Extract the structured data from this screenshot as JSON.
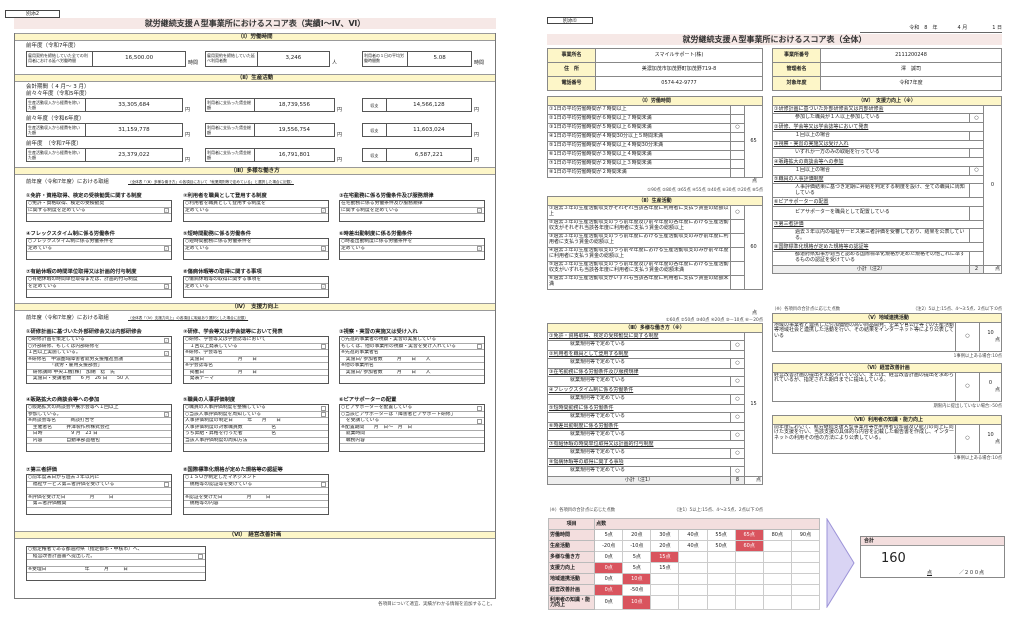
{
  "left": {
    "tag": "別添2",
    "title": "就労継続支援Ａ型事業所におけるスコア表（実績Ⅰ～Ⅳ、Ⅵ）",
    "s1": {
      "header": "（Ⅰ）労働時間",
      "year": "前年度（令和7年度）",
      "fields": [
        {
          "label": "雇用契約を締結していた全ての利用者における延べ労働時間",
          "value": "16,500.00",
          "unit": "時間"
        },
        {
          "label": "雇用契約を締結していた延べ利用者数",
          "value": "3,246",
          "unit": "人"
        },
        {
          "label": "利用者の１日の平均労働時間数",
          "value": "5.08",
          "unit": "時間"
        }
      ]
    },
    "s2": {
      "header": "（Ⅱ）生産活動",
      "period": "会計期間（ 4 月～ 3 月）",
      "labels": [
        "生産活動収入から経費を除いた額",
        "利用者に支払った賃金総額",
        "収支"
      ],
      "unit": "円",
      "years": [
        {
          "label": "前々々年度（令和5年度）",
          "values": [
            "33,305,684",
            "18,739,556",
            "14,566,128"
          ]
        },
        {
          "label": "前々年度（令和6年度）",
          "values": [
            "31,159,778",
            "19,556,754",
            "11,603,024"
          ]
        },
        {
          "label": "前年度　（令和7年度）",
          "values": [
            "23,379,022",
            "16,791,801",
            "6,587,221"
          ]
        }
      ]
    },
    "s3": {
      "header": "（Ⅲ）多様な働き方",
      "intro": "前年度（令和7年度）における取組",
      "note": "（全体表「（Ⅲ）多様な働き方」の各項目において「就業規則等で定めている」と選択した場合に記載）",
      "items": [
        {
          "title": "①免許・資格取得、検定の受検勧奨に関する制度",
          "lines": [
            {
              "t": "○免許・資格取得、検定の受検勧奨"
            },
            {
              "t": "に関する制度を定めている",
              "c": true
            },
            {
              "t": ""
            }
          ]
        },
        {
          "title": "②利用者を職員として登用する制度",
          "lines": [
            {
              "t": "○利用者を職員として登用する制度を"
            },
            {
              "t": "定めている",
              "c": true
            },
            {
              "t": ""
            }
          ]
        },
        {
          "title": "③在宅勤務に係る労働条件及び服務規律",
          "lines": [
            {
              "t": "在宅勤務に係る労働条件及び服務規律"
            },
            {
              "t": "に関する制度を定めている",
              "c": true
            },
            {
              "t": ""
            }
          ]
        },
        {
          "title": "④フレックスタイム制に係る労働条件",
          "lines": [
            {
              "t": "○フレックスタイム制に係る労働条件を"
            },
            {
              "t": "定めている",
              "c": true
            },
            {
              "t": ""
            }
          ]
        },
        {
          "title": "⑤短時間勤務に係る労働条件",
          "lines": [
            {
              "t": "○短時間勤務に係る労働条件を"
            },
            {
              "t": "定めている",
              "c": true
            },
            {
              "t": ""
            }
          ]
        },
        {
          "title": "⑥時差出勤制度に係る労働条件",
          "lines": [
            {
              "t": "○時差出勤制度に係る労働条件を"
            },
            {
              "t": "定めている",
              "c": true
            },
            {
              "t": ""
            }
          ]
        },
        {
          "title": "⑦有給休暇の時間単位取得又は計画的付与制度",
          "lines": [
            {
              "t": "○有給休暇の時間単位取得または、計画的付与制度"
            },
            {
              "t": "を定めている",
              "c": true
            },
            {
              "t": ""
            }
          ]
        },
        {
          "title": "⑧傷病休暇等の取得に関する事項",
          "lines": [
            {
              "t": "○傷病休暇等の取得に関する事項を"
            },
            {
              "t": "定めている",
              "c": true
            },
            {
              "t": ""
            }
          ]
        }
      ]
    },
    "s4": {
      "header": "（Ⅳ）　支援力向上",
      "intro": "前年度（令和7年度）における取組",
      "note": "（全体表「（Ⅳ）支援力向上」の各項目に取組あり選択とした場合に記載）",
      "items": [
        {
          "title": "①研修計画に基づいた外部研修会又は内部研修会",
          "lines": [
            {
              "t": "○研修計画を策定している",
              "c": true
            },
            {
              "t": "○外部研修、もしくは内部研修を"
            },
            {
              "t": "１回以上実施している。",
              "c": true
            },
            {
              "t": "※研修名　中濃圏域障害者就労支援推進会議"
            },
            {
              "t": "　　　　　「就労・雇用支援部会」"
            },
            {
              "t": "　研修講師 中央工機(株)　加納　稔　氏"
            },
            {
              "t": "　実施日・受講者数　　6 月　26 日　　50 人"
            }
          ]
        },
        {
          "title": "②研修、学会等又は学会誌等において発表",
          "lines": [
            {
              "t": "○研修、学会等又は学会誌等において"
            },
            {
              "t": "　１回以上発表している",
              "c": false
            },
            {
              "t": "※研修、学会等名"
            },
            {
              "t": "　実施日　　　　　　　月　　日"
            },
            {
              "t": "※学会誌等名"
            },
            {
              "t": "　掲載日　　　　　　　月　　日"
            },
            {
              "t": "　発表テーマ"
            }
          ]
        },
        {
          "title": "③視察・実習の実施又は受け入れ",
          "lines": [
            {
              "t": "○先進的事業者の視察・実習の実施している"
            },
            {
              "t": "もしくは、他の事業所の視察・実習を受け入れている",
              "c": false
            },
            {
              "t": "※先進的事業者名"
            },
            {
              "t": "　実施日/ 参加者数　　　月　　日　　人"
            },
            {
              "t": "※他の事業所名"
            },
            {
              "t": "　実施日/ 参加者数　　　月　　日　　人"
            },
            {
              "t": ""
            }
          ]
        },
        {
          "title": "④販路拡大の商談会等への参加",
          "lines": [
            {
              "t": "○販路拡大の商談会や展示会等へ１回以上"
            },
            {
              "t": "参加している。",
              "c": true
            },
            {
              "t": "※商談会等名　　　商談打合せ"
            },
            {
              "t": "　主催者名　　　井澤製作所株式会社"
            },
            {
              "t": "　日時　　　　　　9 月　23 日"
            },
            {
              "t": "　内容　　　　　自動車部品梱包"
            },
            {
              "t": ""
            }
          ]
        },
        {
          "title": "⑤職員の人事評価制度",
          "lines": [
            {
              "t": "○職員の人事評価制度を整備している",
              "c": false
            },
            {
              "t": "○当該人事評価制度を周知している",
              "c": false
            },
            {
              "t": "人事評価制度の制定日　　　年　　月　　日"
            },
            {
              "t": "人事評価制度の対象職員数　　　　　　名"
            },
            {
              "t": "うち昇給・昇格を行った者　　　　　　名"
            },
            {
              "t": "当該人事評価制度の周知方法"
            },
            {
              "t": ""
            }
          ]
        },
        {
          "title": "⑥ピアサポーターの配置",
          "lines": [
            {
              "t": "○ピアサポーターを配置している",
              "c": false
            },
            {
              "t": "○当該ピアサポーターは「障害者ピアサポート研修」"
            },
            {
              "t": "　を受講している",
              "c": false
            },
            {
              "t": "※配置期間　　月　日～　月　日"
            },
            {
              "t": "　就業時間"
            },
            {
              "t": "　職務内容"
            },
            {
              "t": ""
            }
          ]
        },
        {
          "title": "⑦第三者評価",
          "lines": [
            {
              "t": "○前年度末日から過去３年以内に"
            },
            {
              "t": "　福祉サービス第三者評価を受けている",
              "c": false
            },
            {
              "t": ""
            },
            {
              "t": "※評価を受けた日　　　　　月　　　日"
            },
            {
              "t": "　第三者評価機関"
            },
            {
              "t": ""
            }
          ]
        },
        {
          "title": "⑧国際標準化規格が定めた規格等の認証等",
          "lines": [
            {
              "t": "○ＩＳＯが制定したマネジメント"
            },
            {
              "t": "　規格等の認証等を受けている",
              "c": false
            },
            {
              "t": ""
            },
            {
              "t": "※認証を受けた日　　　　　月　　　日"
            },
            {
              "t": "　規格等の内容"
            },
            {
              "t": ""
            }
          ]
        }
      ]
    },
    "s6": {
      "header": "（Ⅵ）　経営改善計画",
      "lines": [
        {
          "t": "○指定権者である都道府県（指定都市・中核市）へ、"
        },
        {
          "t": "　経営改善計画書へ提出した。",
          "c": false
        },
        {
          "t": ""
        },
        {
          "t": "※受理日　　　　　　　　年　　　月　　　日"
        },
        {
          "t": ""
        }
      ]
    },
    "footnote": "各項目について適宜、実績がわかる情報を追加すること。"
  },
  "right": {
    "tag": "別添①",
    "date": "令和　8　年　　　　4 月　　　　　1 日",
    "title": "就労継続支援Ａ型事業所におけるスコア表（全体）",
    "info_left": [
      {
        "k": "事業所名",
        "v": "スマイルサポート(株)"
      },
      {
        "k": "住　所",
        "v": "美濃加茂市加茂野町加茂野719-8"
      },
      {
        "k": "電話番号",
        "v": "0574-42-9777"
      }
    ],
    "info_right": [
      {
        "k": "事業所番号",
        "v": "2111200248"
      },
      {
        "k": "管理者名",
        "v": "澤　誠司"
      },
      {
        "k": "対象年度",
        "v": "令和7年度"
      }
    ],
    "s1": {
      "header": "（Ⅰ）労働時間",
      "score": "65",
      "unit": "点",
      "note": "①90点 ②80点 ③65点 ④55点 ⑤40点 ⑥30点 ⑦20点 ⑧5点",
      "rows": [
        {
          "t": "①1日の平均労働時間が７時間以上",
          "m": ""
        },
        {
          "t": "②1日の平均労働時間が６時間以上７時間未満",
          "m": ""
        },
        {
          "t": "③1日の平均労働時間が５時間以上６時間未満",
          "m": "○"
        },
        {
          "t": "④1日の平均労働時間が４時間30分以上５時間未満",
          "m": ""
        },
        {
          "t": "⑤1日の平均労働時間が４時間以上４時間30分未満",
          "m": ""
        },
        {
          "t": "⑥1日の平均労働時間が３時間以上４時間未満",
          "m": ""
        },
        {
          "t": "⑦1日の平均労働時間が２時間以上３時間未満",
          "m": ""
        },
        {
          "t": "⑧1日の平均労働時間が２時間未満",
          "m": ""
        }
      ]
    },
    "s2": {
      "header": "（Ⅱ）生産活動",
      "score": "60",
      "unit": "点",
      "note": "①60点 ②50点 ③40点 ④20点 ⑤－10点 ⑥－20点",
      "rows": [
        {
          "t": "①過去３年の生産活動収支がそれぞれ当該各年度に利用者に支払う賃金の総額以上",
          "m": "○"
        },
        {
          "t": "②過去３年の生産活動収支のうち前年度及び前々年度の各年度における生産活動収支がそれぞれ当該各年度に利用者に支払う賃金の総額以上",
          "m": ""
        },
        {
          "t": "③過去３年の生産活動収支のうち前年度における生産活動収支のみが前年度に利用者に支払う賃金の総額以上",
          "m": ""
        },
        {
          "t": "④過去３年の生産活動収支のうち前々年度における生産活動収支のみが前々年度に利用者に支払う賃金の総額以上",
          "m": ""
        },
        {
          "t": "⑤過去３年の生産活動収支のうち前年度及び前々年度の各年度における生産活動収支がいずれも当該各年度に利用者に支払う賃金の総額未満",
          "m": ""
        },
        {
          "t": "⑥過去３年の生産活動収支がいずれも当該各年度に利用者に支払う賃金の総額未満",
          "m": ""
        }
      ]
    },
    "s3": {
      "header": "（Ⅲ）多様な働き方（※）",
      "score": "15",
      "subtotal_label": "小計（注1）",
      "subtotal": "8",
      "unit": "点",
      "note_a": "（※）各項目の合計点に応じた点数",
      "note_b": "（注1）5以上:15点、4～3:5点、2点以下:0点",
      "items": [
        {
          "h": "①免許・資格取得、検定の受検勧奨に関する制度",
          "s": "就業規則等で定めている",
          "m": "○"
        },
        {
          "h": "②利用者を職員として登用する制度",
          "s": "就業規則等で定めている",
          "m": "○"
        },
        {
          "h": "③在宅勤務に係る労働条件及び服務規律",
          "s": "就業規則等で定めている",
          "m": "○"
        },
        {
          "h": "④フレックスタイム制に係る労働条件",
          "s": "就業規則等で定めている",
          "m": "○"
        },
        {
          "h": "⑤短時間勤務に係る労働条件",
          "s": "就業規則等で定めている",
          "m": "○"
        },
        {
          "h": "⑥時差出勤制度に係る労働条件",
          "s": "就業規則等で定めている",
          "m": "○"
        },
        {
          "h": "⑦有給休暇の時間単位取得又は計画的付与制度",
          "s": "就業規則等で定めている",
          "m": "○"
        },
        {
          "h": "⑧傷病休暇等の取得に関する事項",
          "s": "就業規則等で定めている",
          "m": "○"
        }
      ]
    },
    "s4": {
      "header": "（Ⅳ）　支援力向上（※）",
      "score": "0",
      "subtotal_label": "小計（注2）",
      "subtotal": "2",
      "unit": "点",
      "note_a": "（※）各項目の合計点に応じた点数",
      "note_b": "（注2）5以上:15点、4～3:5点、2点以下:0点",
      "items": [
        {
          "h": "①研修計画に基づいた外部研修会又は内部研修会",
          "s": "参加した職員が１人以上参加している",
          "m": "○"
        },
        {
          "h": "②研修、学会等又は学会誌等において発表",
          "s": "１回以上の場合",
          "m": ""
        },
        {
          "h": "③視察・実習の実施又は受け入れ",
          "s": "いずれか一方のみの取組を行っている",
          "m": ""
        },
        {
          "h": "④販路拡大の商談会等への参加",
          "s": "１回以上の場合",
          "m": "○"
        },
        {
          "h": "⑤職員の人事評価制度",
          "s": "人事評価結果に基づき定期に昇給を判定する制度を設け、全ての職員に周知している",
          "m": ""
        },
        {
          "h": "⑥ピアサポーターの配置",
          "s": "ピアサポーターを職員として配置している",
          "m": ""
        },
        {
          "h": "⑦第三者評価",
          "s": "過去３年以内の福祉サービス第三者評価を受審しており、結果を公表している。",
          "m": ""
        },
        {
          "h": "⑧国際標準化規格が定めた規格等の認証等",
          "s": "都道府県知事が適当と認める国際標準化規格が定めた規格その他これに準ずるものの認証を受けている",
          "m": ""
        }
      ]
    },
    "s5": {
      "header": "（Ⅴ）地域連携活動",
      "text": "地域の事業者と連携した付加価値の高い商品開発、企業や官公庁等での生産活動等地域社会と連携した活動を行い、その結果をインターネット等により公表している",
      "m": "○",
      "score": "10",
      "unit": "点",
      "note": "1事例以上ある場合:10点"
    },
    "s6": {
      "header": "（Ⅵ）経営改善計画",
      "text": "経営改善計画の提出を求められていない、または、経営改善計画の提出を求められているが、指定された期日までに提出している。",
      "m": "○",
      "score": "0",
      "unit": "点",
      "note": "期限内に提出していない場合:-50点"
    },
    "s7": {
      "header": "（Ⅶ）利用者の知識・能力向上",
      "text": "前年度において、就労継続支援Ａ型事業所等が利用者の知識及び能力の向上に向けた支援を行い、当該支援の具体的な内容を記載した報告書を作成し、インターネットの利用その他の方法により公表している。",
      "m": "○",
      "score": "10",
      "unit": "点",
      "note": "1事例以上ある場合:10点"
    },
    "score_table": {
      "col1": "項目",
      "col2": "点数",
      "highlight_color": "#d9545e",
      "rows": [
        {
          "name": "労働時間",
          "points": [
            "5点",
            "20点",
            "30点",
            "40点",
            "55点",
            "65点",
            "80点",
            "90点"
          ],
          "selected": 5
        },
        {
          "name": "生産活動",
          "points": [
            "-20点",
            "-10点",
            "20点",
            "40点",
            "50点",
            "60点"
          ],
          "selected": 5
        },
        {
          "name": "多様な働き方",
          "points": [
            "0点",
            "5点",
            "15点"
          ],
          "selected": 2
        },
        {
          "name": "支援力向上",
          "points": [
            "0点",
            "5点",
            "15点"
          ],
          "selected": 0
        },
        {
          "name": "地域連携活動",
          "points": [
            "0点",
            "10点"
          ],
          "selected": 1
        },
        {
          "name": "経営改善計画",
          "points": [
            "0点",
            "-50点"
          ],
          "selected": 0
        },
        {
          "name": "利用者の知識・能力向上",
          "points": [
            "0点",
            "10点"
          ],
          "selected": 1
        }
      ]
    },
    "total": {
      "label": "合計",
      "value": "160",
      "unit": "点",
      "max": "／２００点"
    }
  }
}
